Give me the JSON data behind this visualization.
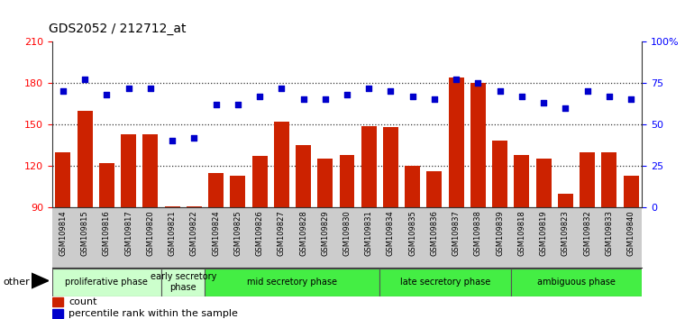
{
  "title": "GDS2052 / 212712_at",
  "samples": [
    "GSM109814",
    "GSM109815",
    "GSM109816",
    "GSM109817",
    "GSM109820",
    "GSM109821",
    "GSM109822",
    "GSM109824",
    "GSM109825",
    "GSM109826",
    "GSM109827",
    "GSM109828",
    "GSM109829",
    "GSM109830",
    "GSM109831",
    "GSM109834",
    "GSM109835",
    "GSM109836",
    "GSM109837",
    "GSM109838",
    "GSM109839",
    "GSM109818",
    "GSM109819",
    "GSM109823",
    "GSM109832",
    "GSM109833",
    "GSM109840"
  ],
  "counts": [
    130,
    160,
    122,
    143,
    143,
    91,
    91,
    115,
    113,
    127,
    152,
    135,
    125,
    128,
    149,
    148,
    120,
    116,
    184,
    180,
    138,
    128,
    125,
    100,
    130,
    130,
    113
  ],
  "percentiles": [
    70,
    77,
    68,
    72,
    72,
    40,
    42,
    62,
    62,
    67,
    72,
    65,
    65,
    68,
    72,
    70,
    67,
    65,
    77,
    75,
    70,
    67,
    63,
    60,
    70,
    67,
    65
  ],
  "bar_color": "#cc2200",
  "dot_color": "#0000cc",
  "ylim_left": [
    90,
    210
  ],
  "ylim_right": [
    0,
    100
  ],
  "yticks_left": [
    90,
    120,
    150,
    180,
    210
  ],
  "yticks_right": [
    0,
    25,
    50,
    75,
    100
  ],
  "ytick_labels_right": [
    "0",
    "25",
    "50",
    "75",
    "100%"
  ],
  "phase_info": [
    {
      "label": "proliferative phase",
      "start": 0,
      "end": 5,
      "color": "#ccffcc"
    },
    {
      "label": "early secretory\nphase",
      "start": 5,
      "end": 7,
      "color": "#ccffcc"
    },
    {
      "label": "mid secretory phase",
      "start": 7,
      "end": 15,
      "color": "#44ee44"
    },
    {
      "label": "late secretory phase",
      "start": 15,
      "end": 21,
      "color": "#44ee44"
    },
    {
      "label": "ambiguous phase",
      "start": 21,
      "end": 27,
      "color": "#44ee44"
    }
  ],
  "other_label": "other",
  "legend_count_label": "count",
  "legend_pct_label": "percentile rank within the sample",
  "plot_bg": "#ffffff",
  "tick_area_bg": "#cccccc",
  "dotted_line_color": "#333333"
}
